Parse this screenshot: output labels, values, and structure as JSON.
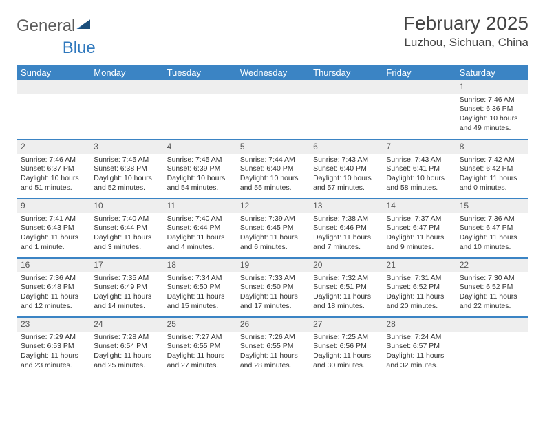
{
  "branding": {
    "logo_part1": "General",
    "logo_part2": "Blue"
  },
  "header": {
    "month_title": "February 2025",
    "location": "Luzhou, Sichuan, China"
  },
  "colors": {
    "header_bar": "#3b84c4",
    "row_divider": "#3b84c4",
    "daynum_bg": "#eeeeee",
    "text": "#333333",
    "logo_blue": "#2f78bd",
    "logo_gray": "#5b5b5b",
    "background": "#ffffff"
  },
  "weekdays": [
    "Sunday",
    "Monday",
    "Tuesday",
    "Wednesday",
    "Thursday",
    "Friday",
    "Saturday"
  ],
  "layout": {
    "columns": 7,
    "weeks": 5,
    "first_weekday_index": 6,
    "days_in_month": 28
  },
  "days": {
    "1": {
      "sunrise": "7:46 AM",
      "sunset": "6:36 PM",
      "daylight": "10 hours and 49 minutes."
    },
    "2": {
      "sunrise": "7:46 AM",
      "sunset": "6:37 PM",
      "daylight": "10 hours and 51 minutes."
    },
    "3": {
      "sunrise": "7:45 AM",
      "sunset": "6:38 PM",
      "daylight": "10 hours and 52 minutes."
    },
    "4": {
      "sunrise": "7:45 AM",
      "sunset": "6:39 PM",
      "daylight": "10 hours and 54 minutes."
    },
    "5": {
      "sunrise": "7:44 AM",
      "sunset": "6:40 PM",
      "daylight": "10 hours and 55 minutes."
    },
    "6": {
      "sunrise": "7:43 AM",
      "sunset": "6:40 PM",
      "daylight": "10 hours and 57 minutes."
    },
    "7": {
      "sunrise": "7:43 AM",
      "sunset": "6:41 PM",
      "daylight": "10 hours and 58 minutes."
    },
    "8": {
      "sunrise": "7:42 AM",
      "sunset": "6:42 PM",
      "daylight": "11 hours and 0 minutes."
    },
    "9": {
      "sunrise": "7:41 AM",
      "sunset": "6:43 PM",
      "daylight": "11 hours and 1 minute."
    },
    "10": {
      "sunrise": "7:40 AM",
      "sunset": "6:44 PM",
      "daylight": "11 hours and 3 minutes."
    },
    "11": {
      "sunrise": "7:40 AM",
      "sunset": "6:44 PM",
      "daylight": "11 hours and 4 minutes."
    },
    "12": {
      "sunrise": "7:39 AM",
      "sunset": "6:45 PM",
      "daylight": "11 hours and 6 minutes."
    },
    "13": {
      "sunrise": "7:38 AM",
      "sunset": "6:46 PM",
      "daylight": "11 hours and 7 minutes."
    },
    "14": {
      "sunrise": "7:37 AM",
      "sunset": "6:47 PM",
      "daylight": "11 hours and 9 minutes."
    },
    "15": {
      "sunrise": "7:36 AM",
      "sunset": "6:47 PM",
      "daylight": "11 hours and 10 minutes."
    },
    "16": {
      "sunrise": "7:36 AM",
      "sunset": "6:48 PM",
      "daylight": "11 hours and 12 minutes."
    },
    "17": {
      "sunrise": "7:35 AM",
      "sunset": "6:49 PM",
      "daylight": "11 hours and 14 minutes."
    },
    "18": {
      "sunrise": "7:34 AM",
      "sunset": "6:50 PM",
      "daylight": "11 hours and 15 minutes."
    },
    "19": {
      "sunrise": "7:33 AM",
      "sunset": "6:50 PM",
      "daylight": "11 hours and 17 minutes."
    },
    "20": {
      "sunrise": "7:32 AM",
      "sunset": "6:51 PM",
      "daylight": "11 hours and 18 minutes."
    },
    "21": {
      "sunrise": "7:31 AM",
      "sunset": "6:52 PM",
      "daylight": "11 hours and 20 minutes."
    },
    "22": {
      "sunrise": "7:30 AM",
      "sunset": "6:52 PM",
      "daylight": "11 hours and 22 minutes."
    },
    "23": {
      "sunrise": "7:29 AM",
      "sunset": "6:53 PM",
      "daylight": "11 hours and 23 minutes."
    },
    "24": {
      "sunrise": "7:28 AM",
      "sunset": "6:54 PM",
      "daylight": "11 hours and 25 minutes."
    },
    "25": {
      "sunrise": "7:27 AM",
      "sunset": "6:55 PM",
      "daylight": "11 hours and 27 minutes."
    },
    "26": {
      "sunrise": "7:26 AM",
      "sunset": "6:55 PM",
      "daylight": "11 hours and 28 minutes."
    },
    "27": {
      "sunrise": "7:25 AM",
      "sunset": "6:56 PM",
      "daylight": "11 hours and 30 minutes."
    },
    "28": {
      "sunrise": "7:24 AM",
      "sunset": "6:57 PM",
      "daylight": "11 hours and 32 minutes."
    }
  },
  "labels": {
    "sunrise_prefix": "Sunrise: ",
    "sunset_prefix": "Sunset: ",
    "daylight_prefix": "Daylight: "
  }
}
